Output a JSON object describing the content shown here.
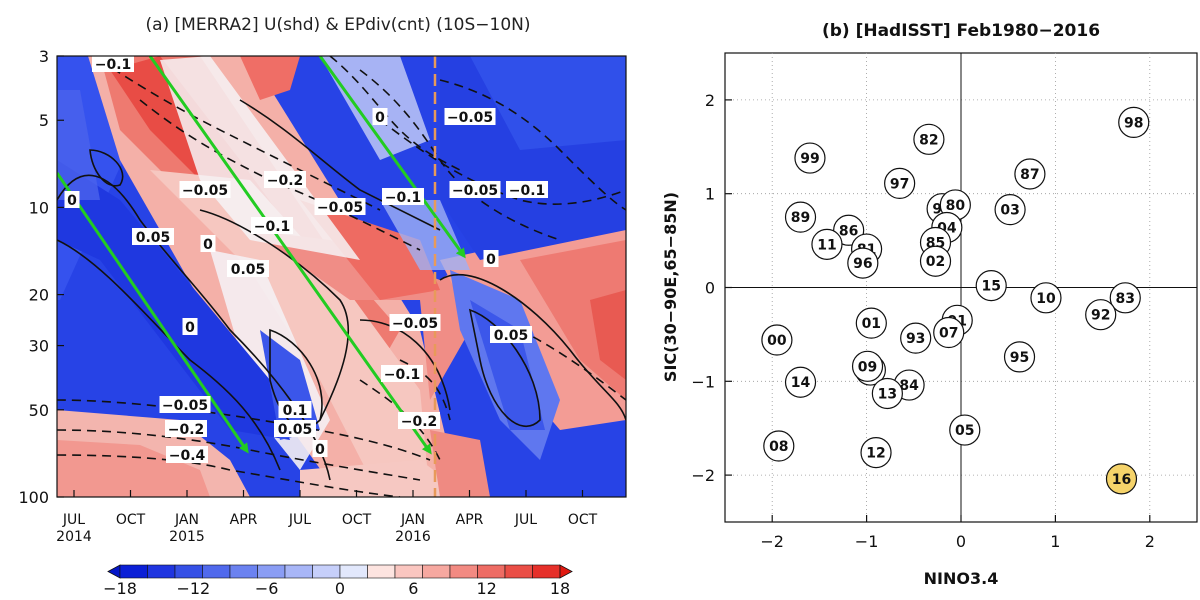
{
  "panel_a": {
    "title": "(a) [MERRA2] U(shd) & EPdiv(cnt) (10S−10N)"
  },
  "panel_b": {
    "title": "(b) [HadISST] Feb1980−2016"
  },
  "colors": {
    "strong_blue": "#1a32e6",
    "strong_red": "#e62626",
    "arrow_green": "#22cc22",
    "marker_dashed": "#e89a5a",
    "highlight_2016": "#f5d36a"
  },
  "chart_data": [
    {
      "type": "heatmap",
      "title": "(a) [MERRA2] U(shd) & EPdiv(cnt) (10S−10N)",
      "xlabel": "",
      "ylabel": "",
      "x_ticks": [
        {
          "label": "JUL",
          "sub": "2014"
        },
        {
          "label": "OCT",
          "sub": ""
        },
        {
          "label": "JAN",
          "sub": "2015"
        },
        {
          "label": "APR",
          "sub": ""
        },
        {
          "label": "JUL",
          "sub": ""
        },
        {
          "label": "OCT",
          "sub": ""
        },
        {
          "label": "JAN",
          "sub": "2016"
        },
        {
          "label": "APR",
          "sub": ""
        },
        {
          "label": "JUL",
          "sub": ""
        },
        {
          "label": "OCT",
          "sub": ""
        }
      ],
      "y_ticks": [
        "3",
        "5",
        "10",
        "20",
        "30",
        "50",
        "100"
      ],
      "y_scale": "log",
      "ylim": [
        100,
        3
      ],
      "colorbar": {
        "labels": [
          "−18",
          "−12",
          "−6",
          "0",
          "6",
          "12",
          "18"
        ],
        "range": [
          -18,
          18
        ]
      },
      "contour_labels": [
        {
          "text": "−0.1"
        },
        {
          "text": "0"
        },
        {
          "text": "−0.05"
        },
        {
          "text": "−0.05"
        },
        {
          "text": "−0.2"
        },
        {
          "text": "−0.05"
        },
        {
          "text": "−0.1"
        },
        {
          "text": "−0.05"
        },
        {
          "text": "−0.1"
        },
        {
          "text": "0"
        },
        {
          "text": "0.05"
        },
        {
          "text": "0"
        },
        {
          "text": "−0.1"
        },
        {
          "text": "0.05"
        },
        {
          "text": "0"
        },
        {
          "text": "0"
        },
        {
          "text": "−0.05"
        },
        {
          "text": "0.05"
        },
        {
          "text": "−0.1"
        },
        {
          "text": "−0.05"
        },
        {
          "text": "−0.2"
        },
        {
          "text": "−0.4"
        },
        {
          "text": "0.1"
        },
        {
          "text": "0.05"
        },
        {
          "text": "0"
        },
        {
          "text": "−0.2"
        }
      ]
    },
    {
      "type": "scatter",
      "title": "(b) [HadISST] Feb1980−2016",
      "xlabel": "NINO3.4",
      "ylabel": "SIC(30−90E,65−85N)",
      "xlim": [
        -2.5,
        2.5
      ],
      "ylim": [
        -2.5,
        2.5
      ],
      "x_ticks": [
        "−2",
        "−1",
        "0",
        "1",
        "2"
      ],
      "y_ticks": [
        "2",
        "1",
        "0",
        "−1",
        "−2"
      ],
      "points": [
        {
          "label": "98",
          "x": 1.83,
          "y": 1.76
        },
        {
          "label": "82",
          "x": -0.34,
          "y": 1.58
        },
        {
          "label": "99",
          "x": -1.6,
          "y": 1.38
        },
        {
          "label": "87",
          "x": 0.73,
          "y": 1.21
        },
        {
          "label": "97",
          "x": -0.65,
          "y": 1.11
        },
        {
          "label": "94",
          "x": -0.2,
          "y": 0.84
        },
        {
          "label": "80",
          "x": -0.06,
          "y": 0.88
        },
        {
          "label": "03",
          "x": 0.52,
          "y": 0.83
        },
        {
          "label": "89",
          "x": -1.7,
          "y": 0.75
        },
        {
          "label": "86",
          "x": -1.19,
          "y": 0.61
        },
        {
          "label": "04",
          "x": -0.15,
          "y": 0.64
        },
        {
          "label": "11",
          "x": -1.42,
          "y": 0.46
        },
        {
          "label": "81",
          "x": -1.0,
          "y": 0.41
        },
        {
          "label": "85",
          "x": -0.27,
          "y": 0.48
        },
        {
          "label": "96",
          "x": -1.04,
          "y": 0.26
        },
        {
          "label": "02",
          "x": -0.27,
          "y": 0.28
        },
        {
          "label": "15",
          "x": 0.32,
          "y": 0.02
        },
        {
          "label": "10",
          "x": 0.9,
          "y": -0.11
        },
        {
          "label": "83",
          "x": 1.74,
          "y": -0.11
        },
        {
          "label": "92",
          "x": 1.48,
          "y": -0.29
        },
        {
          "label": "91",
          "x": -0.04,
          "y": -0.35
        },
        {
          "label": "01",
          "x": -0.95,
          "y": -0.38
        },
        {
          "label": "07",
          "x": -0.13,
          "y": -0.48
        },
        {
          "label": "93",
          "x": -0.48,
          "y": -0.54
        },
        {
          "label": "00",
          "x": -1.95,
          "y": -0.56
        },
        {
          "label": "95",
          "x": 0.62,
          "y": -0.74
        },
        {
          "label": "88",
          "x": -0.96,
          "y": -0.88
        },
        {
          "label": "09",
          "x": -0.99,
          "y": -0.84
        },
        {
          "label": "14",
          "x": -1.7,
          "y": -1.01
        },
        {
          "label": "84",
          "x": -0.55,
          "y": -1.04
        },
        {
          "label": "13",
          "x": -0.78,
          "y": -1.13
        },
        {
          "label": "05",
          "x": 0.04,
          "y": -1.52
        },
        {
          "label": "08",
          "x": -1.93,
          "y": -1.69
        },
        {
          "label": "12",
          "x": -0.9,
          "y": -1.76
        },
        {
          "label": "16",
          "x": 1.7,
          "y": -2.04,
          "highlight": true
        }
      ]
    }
  ]
}
